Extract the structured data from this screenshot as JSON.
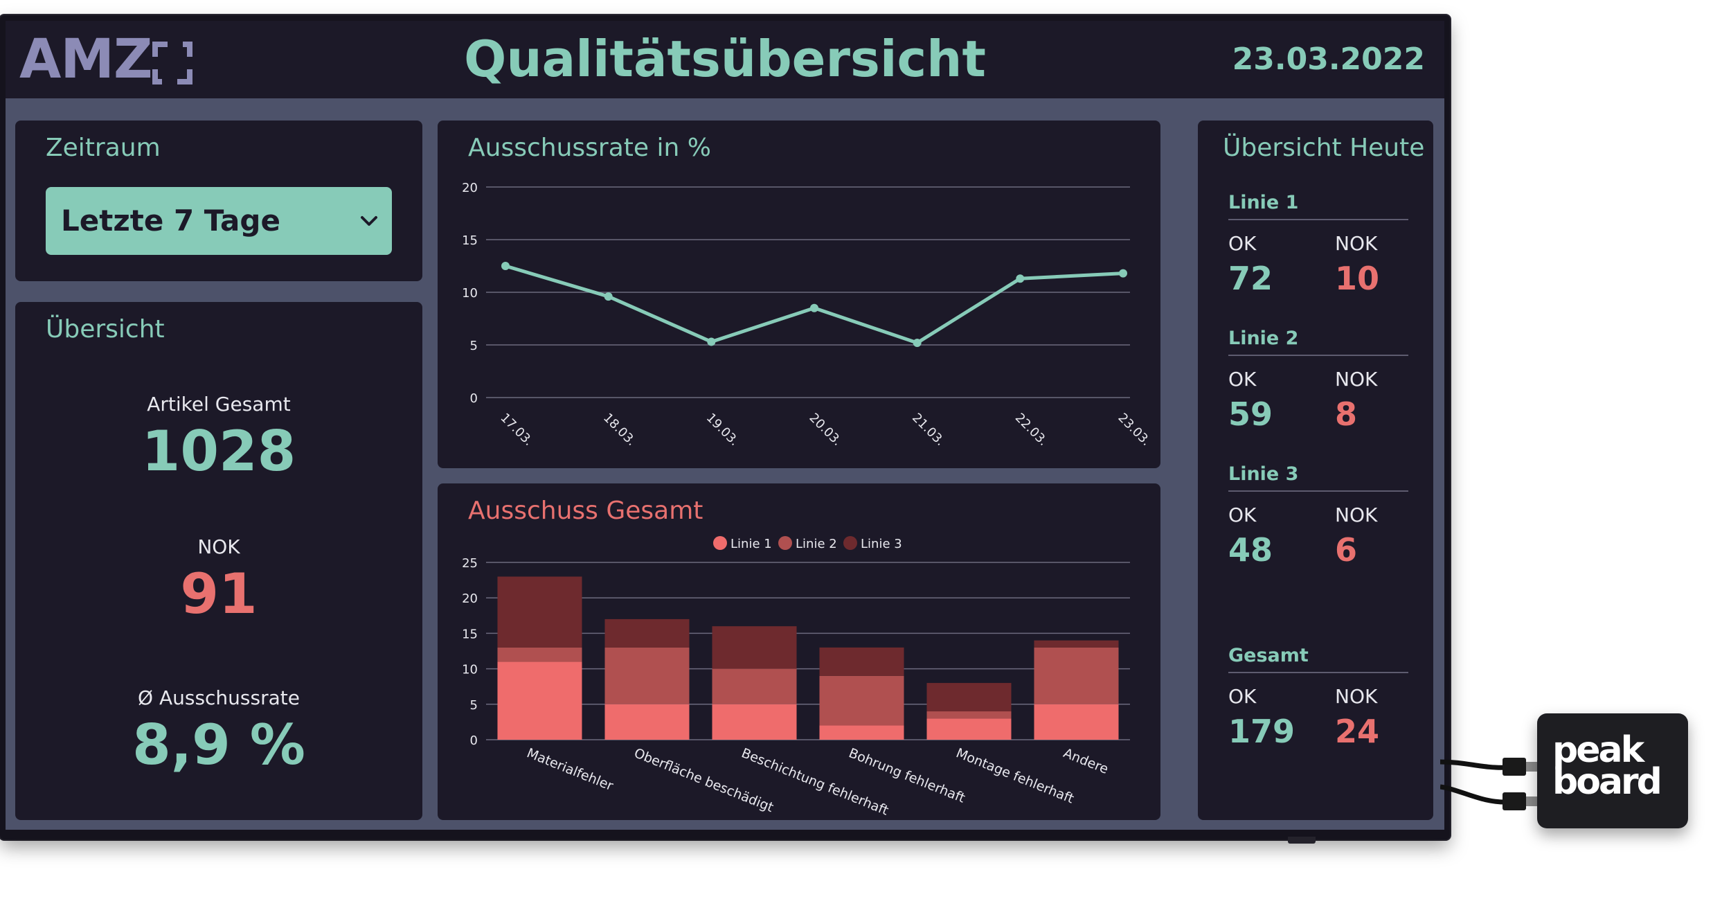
{
  "header": {
    "logo_text": "AMZ",
    "logo_icon": "bracket-logo-icon",
    "title": "Qualitätsübersicht",
    "date": "23.03.2022"
  },
  "period": {
    "title": "Zeitraum",
    "selected": "Letzte 7 Tage",
    "icon": "chevron-down-icon"
  },
  "overview": {
    "title": "Übersicht",
    "total_label": "Artikel Gesamt",
    "total_value": "1028",
    "nok_label": "NOK",
    "nok_value": "91",
    "rate_label": "Ø Ausschussrate",
    "rate_value": "8,9 %"
  },
  "today": {
    "title": "Übersicht Heute",
    "ok_label": "OK",
    "nok_label": "NOK",
    "lines": [
      {
        "name": "Linie 1",
        "ok": "72",
        "nok": "10"
      },
      {
        "name": "Linie 2",
        "ok": "59",
        "nok": "8"
      },
      {
        "name": "Linie 3",
        "ok": "48",
        "nok": "6"
      }
    ],
    "total": {
      "name": "Gesamt",
      "ok": "179",
      "nok": "24"
    }
  },
  "colors": {
    "teal": "#87cbb8",
    "red": "#e8716f",
    "series1": "#ef6c6c",
    "series2": "#b05050",
    "series3": "#6e2a2e"
  },
  "device": {
    "brand": "peak board"
  },
  "chart_data": [
    {
      "type": "line",
      "title": "Ausschussrate in %",
      "x": [
        "17.03.",
        "18.03.",
        "19.03.",
        "20.03.",
        "21.03.",
        "22.03.",
        "23.03."
      ],
      "values": [
        12.5,
        9.6,
        5.3,
        8.5,
        5.2,
        11.3,
        11.8
      ],
      "ylim": [
        0,
        20
      ],
      "yticks": [
        0,
        5,
        10,
        15,
        20
      ],
      "grid": true,
      "color": "#87cbb8"
    },
    {
      "type": "bar",
      "stacked": true,
      "title": "Ausschuss Gesamt",
      "categories": [
        "Materialfehler",
        "Oberfläche beschädigt",
        "Beschichtung fehlerhaft",
        "Bohrung fehlerhaft",
        "Montage fehlerhaft",
        "Andere"
      ],
      "series": [
        {
          "name": "Linie 1",
          "values": [
            11,
            5,
            5,
            2,
            3,
            5
          ]
        },
        {
          "name": "Linie 2",
          "values": [
            2,
            8,
            5,
            7,
            1,
            8
          ]
        },
        {
          "name": "Linie 3",
          "values": [
            10,
            4,
            6,
            4,
            4,
            1
          ]
        }
      ],
      "ylim": [
        0,
        25
      ],
      "yticks": [
        0,
        5,
        10,
        15,
        20,
        25
      ],
      "legend": "top",
      "grid": true
    }
  ]
}
